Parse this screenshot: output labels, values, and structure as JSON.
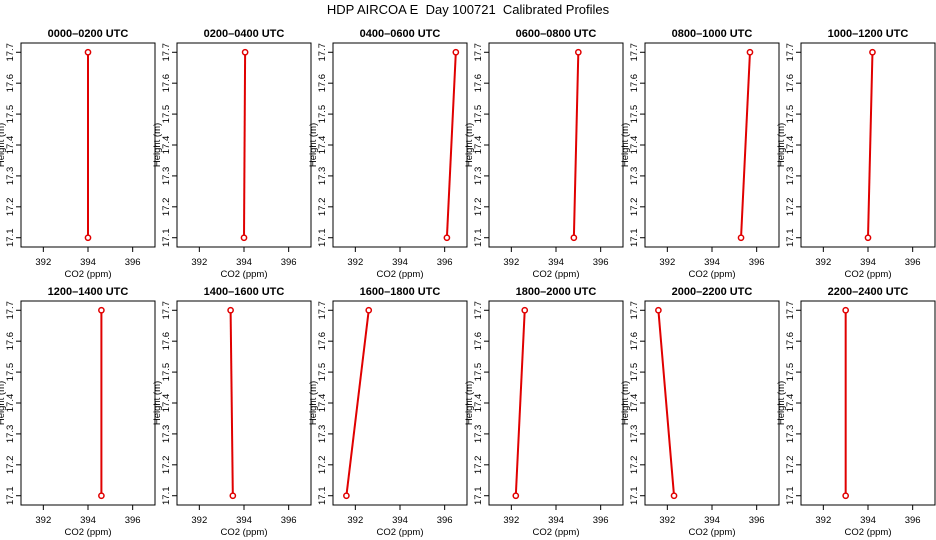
{
  "title": "HDP AIRCOA E  Day 100721  Calibrated Profiles",
  "axes": {
    "xlabel": "CO2 (ppm)",
    "ylabel": "Height (m)",
    "xlim": [
      391.0,
      397.0
    ],
    "ylim": [
      17.07,
      17.73
    ],
    "xticks": [
      392,
      394,
      396
    ],
    "yticks": [
      17.1,
      17.2,
      17.3,
      17.4,
      17.5,
      17.6,
      17.7
    ],
    "series_color": "#e00000"
  },
  "chart_data": [
    {
      "type": "line",
      "title": "0000–0200 UTC",
      "xlabel": "CO2 (ppm)",
      "ylabel": "Height (m)",
      "x": [
        394.0,
        394.0
      ],
      "y": [
        17.1,
        17.7
      ]
    },
    {
      "type": "line",
      "title": "0200–0400 UTC",
      "xlabel": "CO2 (ppm)",
      "ylabel": "Height (m)",
      "x": [
        394.0,
        394.05
      ],
      "y": [
        17.1,
        17.7
      ]
    },
    {
      "type": "line",
      "title": "0400–0600 UTC",
      "xlabel": "CO2 (ppm)",
      "ylabel": "Height (m)",
      "x": [
        396.1,
        396.5
      ],
      "y": [
        17.1,
        17.7
      ]
    },
    {
      "type": "line",
      "title": "0600–0800 UTC",
      "xlabel": "CO2 (ppm)",
      "ylabel": "Height (m)",
      "x": [
        394.8,
        395.0
      ],
      "y": [
        17.1,
        17.7
      ]
    },
    {
      "type": "line",
      "title": "0800–1000 UTC",
      "xlabel": "CO2 (ppm)",
      "ylabel": "Height (m)",
      "x": [
        395.3,
        395.7
      ],
      "y": [
        17.1,
        17.7
      ]
    },
    {
      "type": "line",
      "title": "1000–1200 UTC",
      "xlabel": "CO2 (ppm)",
      "ylabel": "Height (m)",
      "x": [
        394.0,
        394.2
      ],
      "y": [
        17.1,
        17.7
      ]
    },
    {
      "type": "line",
      "title": "1200–1400 UTC",
      "xlabel": "CO2 (ppm)",
      "ylabel": "Height (m)",
      "x": [
        394.6,
        394.6
      ],
      "y": [
        17.1,
        17.7
      ]
    },
    {
      "type": "line",
      "title": "1400–1600 UTC",
      "xlabel": "CO2 (ppm)",
      "ylabel": "Height (m)",
      "x": [
        393.5,
        393.4
      ],
      "y": [
        17.1,
        17.7
      ]
    },
    {
      "type": "line",
      "title": "1600–1800 UTC",
      "xlabel": "CO2 (ppm)",
      "ylabel": "Height (m)",
      "x": [
        391.6,
        392.6
      ],
      "y": [
        17.1,
        17.7
      ]
    },
    {
      "type": "line",
      "title": "1800–2000 UTC",
      "xlabel": "CO2 (ppm)",
      "ylabel": "Height (m)",
      "x": [
        392.2,
        392.6
      ],
      "y": [
        17.1,
        17.7
      ]
    },
    {
      "type": "line",
      "title": "2000–2200 UTC",
      "xlabel": "CO2 (ppm)",
      "ylabel": "Height (m)",
      "x": [
        392.3,
        391.6
      ],
      "y": [
        17.1,
        17.7
      ]
    },
    {
      "type": "line",
      "title": "2200–2400 UTC",
      "xlabel": "CO2 (ppm)",
      "ylabel": "Height (m)",
      "x": [
        393.0,
        393.0
      ],
      "y": [
        17.1,
        17.7
      ]
    }
  ]
}
